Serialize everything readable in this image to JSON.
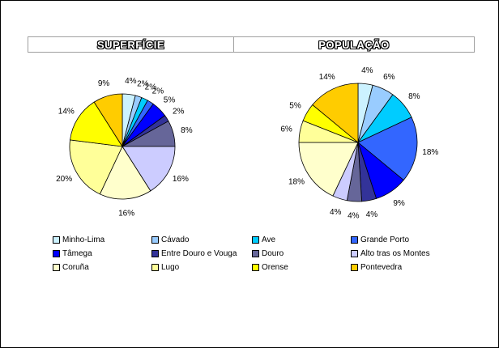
{
  "headers": {
    "left": "SUPERFÍCIE",
    "right": "POPULAÇÃO"
  },
  "regions": [
    {
      "name": "Minho-Lima",
      "color": "#ccf2ff"
    },
    {
      "name": "Cávado",
      "color": "#99ccff"
    },
    {
      "name": "Ave",
      "color": "#00ccff"
    },
    {
      "name": "Grande Porto",
      "color": "#3366ff"
    },
    {
      "name": "Tâmega",
      "color": "#0000ff"
    },
    {
      "name": "Entre Douro e Vouga",
      "color": "#333399"
    },
    {
      "name": "Douro",
      "color": "#666699"
    },
    {
      "name": "Alto tras os Montes",
      "color": "#ccccff"
    },
    {
      "name": "Coruña",
      "color": "#ffffcc"
    },
    {
      "name": "Lugo",
      "color": "#ffff99"
    },
    {
      "name": "Orense",
      "color": "#ffff00"
    },
    {
      "name": "Pontevedra",
      "color": "#ffcc00"
    }
  ],
  "chart_data": [
    {
      "type": "pie",
      "title": "SUPERFÍCIE",
      "categories": [
        "Minho-Lima",
        "Cávado",
        "Ave",
        "Grande Porto",
        "Tâmega",
        "Entre Douro e Vouga",
        "Douro",
        "Alto tras os Montes",
        "Coruña",
        "Lugo",
        "Orense",
        "Pontevedra"
      ],
      "values": [
        4,
        2,
        2,
        2,
        5,
        2,
        8,
        16,
        16,
        20,
        14,
        9
      ],
      "labels": [
        "4%",
        "2%",
        "2%",
        "2%",
        "5%",
        "2%",
        "8%",
        "16%",
        "16%",
        "20%",
        "14%",
        "9%"
      ]
    },
    {
      "type": "pie",
      "title": "POPULAÇÃO",
      "categories": [
        "Minho-Lima",
        "Cávado",
        "Ave",
        "Grande Porto",
        "Tâmega",
        "Entre Douro e Vouga",
        "Douro",
        "Alto tras os Montes",
        "Coruña",
        "Lugo",
        "Orense",
        "Pontevedra"
      ],
      "values": [
        4,
        6,
        8,
        18,
        9,
        4,
        4,
        4,
        18,
        6,
        5,
        14
      ],
      "labels": [
        "4%",
        "6%",
        "8%",
        "18%",
        "9%",
        "4%",
        "4%",
        "4%",
        "18%",
        "6%",
        "5%",
        "14%"
      ]
    }
  ]
}
